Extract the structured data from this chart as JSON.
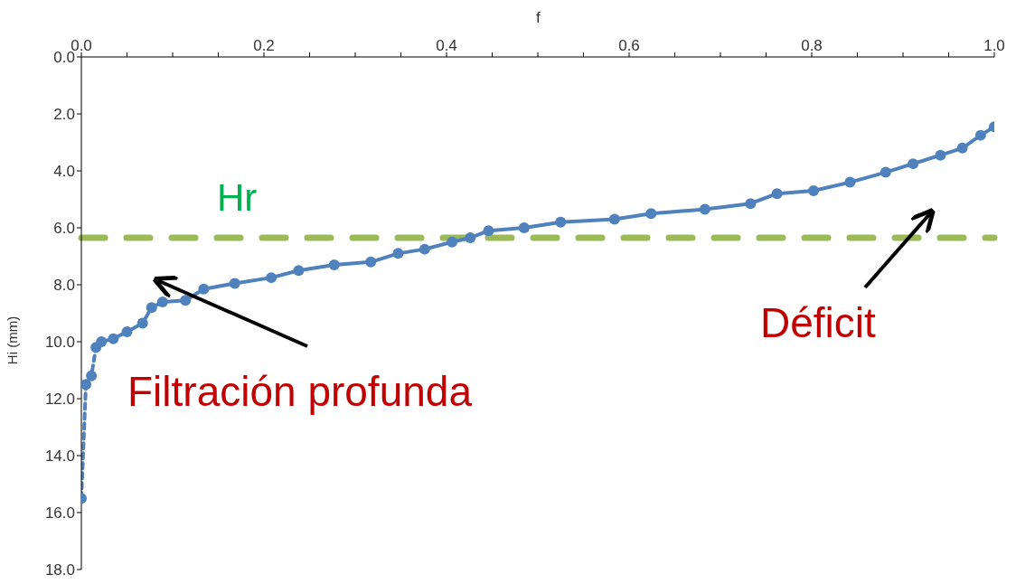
{
  "chart_data": {
    "type": "line",
    "xlabel": "f",
    "ylabel": "Hi (mm)",
    "xlim": [
      0,
      1
    ],
    "ylim": [
      18,
      0
    ],
    "xticks": [
      {
        "value": 0,
        "label": "0.0"
      },
      {
        "value": 0.05,
        "label": null
      },
      {
        "value": 0.1,
        "label": null
      },
      {
        "value": 0.15,
        "label": null
      },
      {
        "value": 0.2,
        "label": "0.2"
      },
      {
        "value": 0.25,
        "label": null
      },
      {
        "value": 0.3,
        "label": null
      },
      {
        "value": 0.35,
        "label": null
      },
      {
        "value": 0.4,
        "label": "0.4"
      },
      {
        "value": 0.45,
        "label": null
      },
      {
        "value": 0.5,
        "label": null
      },
      {
        "value": 0.55,
        "label": null
      },
      {
        "value": 0.6,
        "label": "0.6"
      },
      {
        "value": 0.65,
        "label": null
      },
      {
        "value": 0.7,
        "label": null
      },
      {
        "value": 0.75,
        "label": null
      },
      {
        "value": 0.8,
        "label": "0.8"
      },
      {
        "value": 0.85,
        "label": null
      },
      {
        "value": 0.9,
        "label": null
      },
      {
        "value": 0.95,
        "label": null
      },
      {
        "value": 1,
        "label": "1.0"
      }
    ],
    "yticks": [
      {
        "value": 0,
        "label": "0.0"
      },
      {
        "value": 2,
        "label": "2.0"
      },
      {
        "value": 4,
        "label": "4.0"
      },
      {
        "value": 6,
        "label": "6.0"
      },
      {
        "value": 8,
        "label": "8.0"
      },
      {
        "value": 10,
        "label": "10.0"
      },
      {
        "value": 12,
        "label": "12.0"
      },
      {
        "value": 14,
        "label": "14.0"
      },
      {
        "value": 16,
        "label": "16.0"
      },
      {
        "value": 18,
        "label": "18.0"
      }
    ],
    "marker": "circle",
    "series": [
      {
        "color": "#4f81bd",
        "line_style": "dashed",
        "x": [
          0,
          0.005,
          0.011,
          0.016
        ],
        "values": [
          15.5,
          11.5,
          11.2,
          10.2
        ]
      },
      {
        "color": "#4f81bd",
        "line_style": "solid",
        "x": [
          0.022,
          0.035,
          0.05,
          0.067,
          0.077,
          0.089,
          0.114,
          0.134,
          0.168,
          0.208,
          0.238,
          0.277,
          0.317,
          0.347,
          0.376,
          0.406,
          0.426,
          0.446,
          0.485,
          0.525,
          0.584,
          0.624,
          0.683,
          0.733,
          0.762,
          0.802,
          0.842,
          0.881,
          0.911,
          0.941,
          0.965,
          0.985,
          1.0
        ],
        "values": [
          10.0,
          9.9,
          9.65,
          9.35,
          8.8,
          8.6,
          8.55,
          8.15,
          7.95,
          7.75,
          7.5,
          7.3,
          7.2,
          6.9,
          6.75,
          6.5,
          6.35,
          6.1,
          6.0,
          5.8,
          5.7,
          5.5,
          5.35,
          5.15,
          4.8,
          4.7,
          4.4,
          4.05,
          3.75,
          3.45,
          3.2,
          2.75,
          2.45
        ]
      }
    ],
    "ref_lines": [
      {
        "axis": "y",
        "value": 6.35,
        "label": "Hr",
        "color": "#9bbb59",
        "line_style": "dashed"
      }
    ],
    "annotations": [
      "Filtración profunda",
      "Déficit"
    ]
  }
}
